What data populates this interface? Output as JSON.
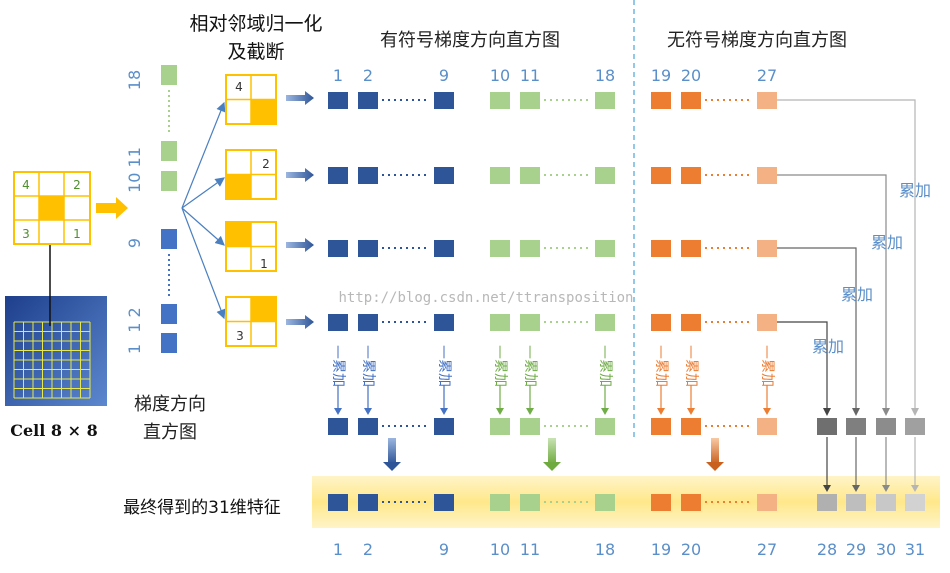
{
  "titles": {
    "normalize_line1": "相对邻域归一化",
    "normalize_line2": "及截断",
    "signed": "有符号梯度方向直方图",
    "unsigned": "无符号梯度方向直方图",
    "hist_line1": "梯度方向",
    "hist_line2": "直方图",
    "final": "最终得到的31维特征",
    "cell_label": "Cell 8 × 8",
    "watermark": "http://blog.csdn.net/ttransposition"
  },
  "left_cell_quadrants": [
    "4",
    "2",
    "3",
    "1"
  ],
  "vertical_histogram_labels": [
    "18",
    "10 11",
    "9",
    "1 2",
    "1"
  ],
  "normalized_blocks": [
    "4",
    "2",
    "1",
    "3"
  ],
  "column_headers": [
    "1",
    "2",
    "9",
    "10",
    "11",
    "18",
    "19",
    "20",
    "27"
  ],
  "bottom_axis": [
    "1",
    "2",
    "9",
    "10",
    "11",
    "18",
    "19",
    "20",
    "27",
    "28",
    "29",
    "30",
    "31"
  ],
  "sum_label": "累加",
  "vertical_sum_label": "累加",
  "colors": {
    "blue": "#2E5597",
    "blue_light": "#4472C4",
    "green": "#A9D18E",
    "orange": "#ED7D31",
    "orange_light": "#F4B183",
    "yellow": "#FFC000",
    "gray_dark": "#7F7F7F",
    "gray_mid": "#A6A6A6",
    "gray_light": "#C8C8C8",
    "axis_label_blue": "#5B8FC9",
    "divider": "#6FB7E0"
  }
}
